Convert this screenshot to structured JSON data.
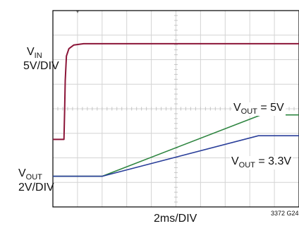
{
  "chart_data": {
    "type": "line",
    "title": "",
    "x_axis": {
      "label": "2ms/DIV",
      "unit": "ms",
      "ms_per_div": 2,
      "divisions": 10,
      "range": [
        0,
        20
      ]
    },
    "y_axis": {
      "divisions": 8,
      "grid": true
    },
    "channels": [
      {
        "name_main": "V",
        "name_sub": "IN",
        "scale": "5V/DIV",
        "color": "#8b1538",
        "x": [
          0,
          0.9,
          0.95,
          1.0,
          1.1,
          1.3,
          1.7,
          2.5,
          20
        ],
        "y_div": [
          1.5,
          1.5,
          2.6,
          3.9,
          4.9,
          5.2,
          5.35,
          5.4,
          5.4
        ]
      },
      {
        "name_main": "V",
        "name_sub": "OUT",
        "scale": "2V/DIV",
        "color": "#2e8540",
        "x": [
          0,
          4.0,
          16.9,
          20
        ],
        "y_div": [
          0,
          0,
          2.5,
          2.5
        ]
      },
      {
        "name_main": "V",
        "name_sub": "OUT",
        "scale": "2V/DIV",
        "color": "#2a3f9a",
        "x": [
          0,
          4.0,
          16.7,
          20
        ],
        "y_div": [
          0,
          0,
          1.65,
          1.65
        ]
      }
    ],
    "annotations": [
      {
        "main": "V",
        "sub": "OUT",
        "rest": " = 5V"
      },
      {
        "main": "V",
        "sub": "OUT",
        "rest": " = 3.3V"
      }
    ],
    "figure_id": "3372 G24"
  }
}
